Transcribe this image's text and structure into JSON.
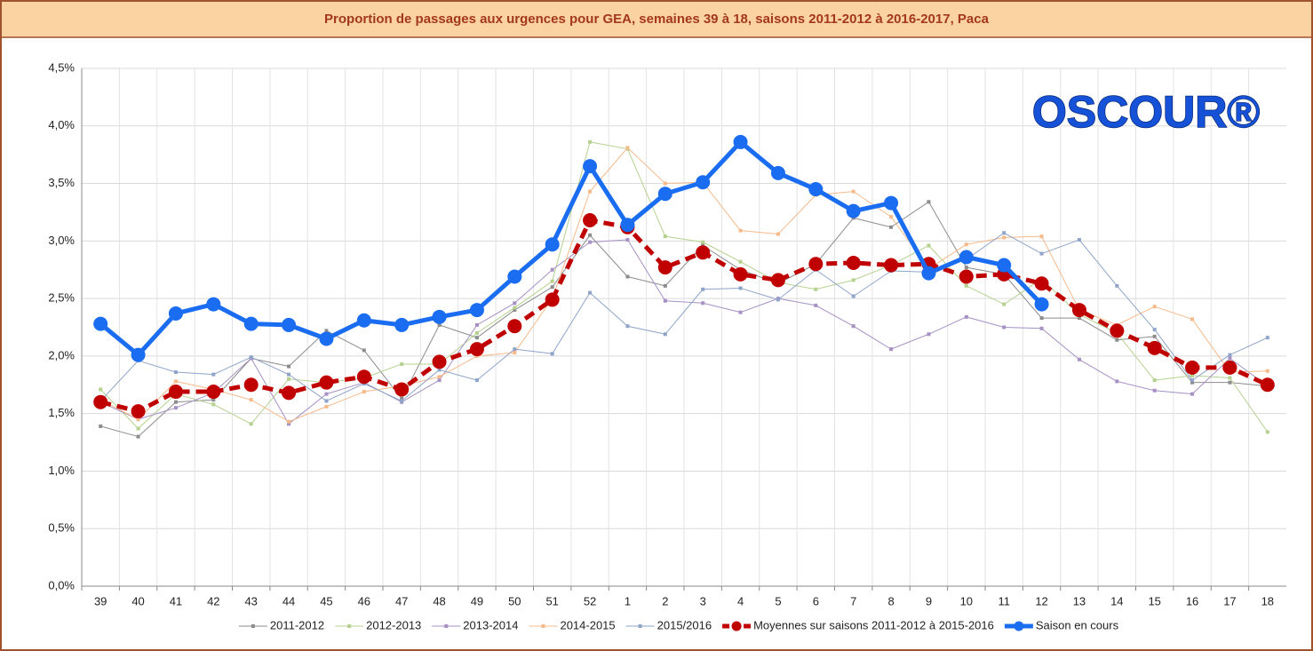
{
  "chart_data": {
    "type": "line",
    "title": "Proportion de passages aux urgences pour GEA, semaines 39 à 18, saisons 2011-2012 à 2016-2017, Paca",
    "logo": "OSCOUR®",
    "categories": [
      "39",
      "40",
      "41",
      "42",
      "43",
      "44",
      "45",
      "46",
      "47",
      "48",
      "49",
      "50",
      "51",
      "52",
      "1",
      "2",
      "3",
      "4",
      "5",
      "6",
      "7",
      "8",
      "9",
      "10",
      "11",
      "12",
      "13",
      "14",
      "15",
      "16",
      "17",
      "18"
    ],
    "ylim": [
      0,
      4.5
    ],
    "yticks": [
      {
        "value": 0,
        "label": "0,0%"
      },
      {
        "value": 0.5,
        "label": "0,5%"
      },
      {
        "value": 1,
        "label": "1,0%"
      },
      {
        "value": 1.5,
        "label": "1,5%"
      },
      {
        "value": 2,
        "label": "2,0%"
      },
      {
        "value": 2.5,
        "label": "2,5%"
      },
      {
        "value": 3,
        "label": "3,0%"
      },
      {
        "value": 3.5,
        "label": "3,5%"
      },
      {
        "value": 4,
        "label": "4,0%"
      },
      {
        "value": 4.5,
        "label": "4,5%"
      }
    ],
    "grid": true,
    "legend": "bottom",
    "series": [
      {
        "name": "2011-2012",
        "color": "#8c8c8c",
        "width": 1,
        "marker": "square",
        "dashed": false,
        "values": [
          1.39,
          1.3,
          1.6,
          1.62,
          1.98,
          1.91,
          2.22,
          2.05,
          1.63,
          2.27,
          2.16,
          2.4,
          2.6,
          3.05,
          2.69,
          2.61,
          2.96,
          2.75,
          2.63,
          2.8,
          3.2,
          3.12,
          3.34,
          2.77,
          2.71,
          2.33,
          2.33,
          2.14,
          2.17,
          1.77,
          1.77,
          1.74
        ]
      },
      {
        "name": "2012-2013",
        "color": "#b5d18f",
        "width": 1,
        "marker": "square",
        "dashed": false,
        "values": [
          1.71,
          1.37,
          1.67,
          1.58,
          1.41,
          1.8,
          1.77,
          1.81,
          1.93,
          1.93,
          2.2,
          2.42,
          2.65,
          3.86,
          3.8,
          3.04,
          2.99,
          2.82,
          2.64,
          2.58,
          2.66,
          2.79,
          2.96,
          2.61,
          2.45,
          2.67,
          2.36,
          2.2,
          1.79,
          1.83,
          1.81,
          1.34
        ]
      },
      {
        "name": "2013-2014",
        "color": "#a690c4",
        "width": 1,
        "marker": "square",
        "dashed": false,
        "values": [
          1.6,
          1.45,
          1.55,
          1.68,
          1.98,
          1.41,
          1.67,
          1.77,
          1.6,
          1.79,
          2.27,
          2.46,
          2.75,
          2.99,
          3.01,
          2.48,
          2.46,
          2.38,
          2.5,
          2.44,
          2.26,
          2.06,
          2.19,
          2.34,
          2.25,
          2.24,
          1.97,
          1.78,
          1.7,
          1.67,
          1.98,
          1.74
        ]
      },
      {
        "name": "2014-2015",
        "color": "#f6b98a",
        "width": 1,
        "marker": "square",
        "dashed": false,
        "values": [
          1.62,
          1.45,
          1.78,
          1.71,
          1.62,
          1.43,
          1.56,
          1.69,
          1.74,
          1.82,
          2.0,
          2.03,
          2.5,
          3.43,
          3.81,
          3.5,
          3.51,
          3.09,
          3.06,
          3.4,
          3.43,
          3.21,
          2.76,
          2.97,
          3.03,
          3.04,
          2.4,
          2.27,
          2.43,
          2.32,
          1.86,
          1.87
        ]
      },
      {
        "name": "2015/2016",
        "color": "#8ea4c8",
        "width": 1,
        "marker": "square",
        "dashed": false,
        "values": [
          1.61,
          1.96,
          1.86,
          1.84,
          1.99,
          1.84,
          1.61,
          1.76,
          1.61,
          1.88,
          1.79,
          2.06,
          2.02,
          2.55,
          2.26,
          2.19,
          2.58,
          2.59,
          2.49,
          2.75,
          2.52,
          2.74,
          2.73,
          2.84,
          3.07,
          2.89,
          3.01,
          2.61,
          2.23,
          1.79,
          2.01,
          2.16
        ]
      },
      {
        "name": "Moyennes sur saisons 2011-2012 à 2015-2016",
        "color": "#c00000",
        "width": 5,
        "marker": "circle",
        "dashed": true,
        "values": [
          1.6,
          1.52,
          1.69,
          1.69,
          1.75,
          1.68,
          1.77,
          1.82,
          1.71,
          1.95,
          2.06,
          2.26,
          2.49,
          3.18,
          3.12,
          2.77,
          2.9,
          2.71,
          2.66,
          2.8,
          2.81,
          2.79,
          2.8,
          2.69,
          2.71,
          2.63,
          2.4,
          2.22,
          2.07,
          1.9,
          1.9,
          1.75
        ]
      },
      {
        "name": "Saison en cours",
        "color": "#1a6cf0",
        "width": 5,
        "marker": "circle",
        "dashed": false,
        "values": [
          2.28,
          2.01,
          2.37,
          2.45,
          2.28,
          2.27,
          2.15,
          2.31,
          2.27,
          2.34,
          2.4,
          2.69,
          2.97,
          3.65,
          3.14,
          3.41,
          3.51,
          3.86,
          3.59,
          3.45,
          3.26,
          3.33,
          2.72,
          2.86,
          2.79,
          2.45,
          null,
          null,
          null,
          null,
          null,
          null
        ]
      }
    ]
  }
}
